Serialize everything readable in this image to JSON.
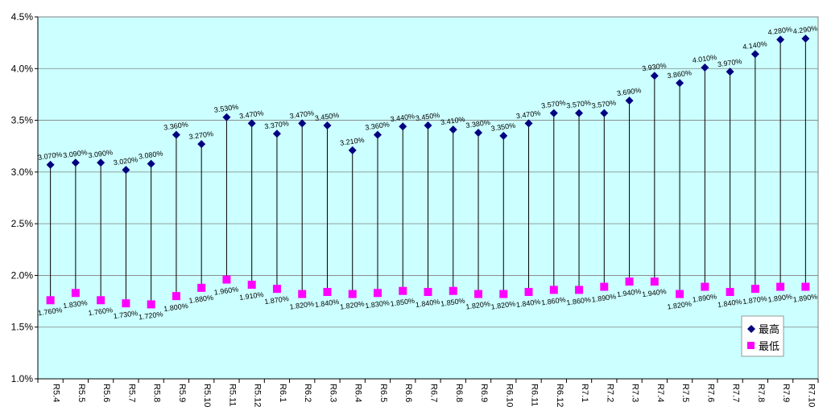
{
  "chart_data": {
    "type": "scatter",
    "categories": [
      "R5.4",
      "R5.5",
      "R5.6",
      "R5.7",
      "R5.8",
      "R5.9",
      "R5.10",
      "R5.11",
      "R5.12",
      "R6.1",
      "R6.2",
      "R6.3",
      "R6.4",
      "R6.5",
      "R6.6",
      "R6.7",
      "R6.8",
      "R6.9",
      "R6.10",
      "R6.11",
      "R6.12",
      "R7.1",
      "R7.2",
      "R7.3",
      "R7.4",
      "R7.5",
      "R7.6",
      "R7.7",
      "R7.8",
      "R7.9",
      "R7.10"
    ],
    "series": [
      {
        "name": "最高",
        "color": "#000080",
        "marker": "diamond",
        "values": [
          3.07,
          3.09,
          3.09,
          3.02,
          3.08,
          3.36,
          3.27,
          3.53,
          3.47,
          3.37,
          3.47,
          3.45,
          3.21,
          3.36,
          3.44,
          3.45,
          3.41,
          3.38,
          3.35,
          3.47,
          3.57,
          3.57,
          3.57,
          3.69,
          3.93,
          3.86,
          4.01,
          3.97,
          4.14,
          4.28,
          4.29
        ],
        "labels": [
          "3.070%",
          "3.090%",
          "3.090%",
          "3.020%",
          "3.080%",
          "3.360%",
          "3.270%",
          "3.530%",
          "3.470%",
          "3.370%",
          "3.470%",
          "3.450%",
          "3.210%",
          "3.360%",
          "3.440%",
          "3.450%",
          "3.410%",
          "3.380%",
          "3.350%",
          "3.470%",
          "3.570%",
          "3.570%",
          "3.570%",
          "3.690%",
          "3.930%",
          "3.860%",
          "4.010%",
          "3.970%",
          "4.140%",
          "4.280%",
          "4.290%"
        ]
      },
      {
        "name": "最低",
        "color": "#ff00ff",
        "marker": "square",
        "values": [
          1.76,
          1.83,
          1.76,
          1.73,
          1.72,
          1.8,
          1.88,
          1.96,
          1.91,
          1.87,
          1.82,
          1.84,
          1.82,
          1.83,
          1.85,
          1.84,
          1.85,
          1.82,
          1.82,
          1.84,
          1.86,
          1.86,
          1.89,
          1.94,
          1.94,
          1.82,
          1.89,
          1.84,
          1.87,
          1.89,
          1.89
        ],
        "labels": [
          "1.760%",
          "1.830%",
          "1.760%",
          "1.730%",
          "1.720%",
          "1.800%",
          "1.880%",
          "1.960%",
          "1.910%",
          "1.870%",
          "1.820%",
          "1.840%",
          "1.820%",
          "1.830%",
          "1.850%",
          "1.840%",
          "1.850%",
          "1.820%",
          "1.820%",
          "1.840%",
          "1.860%",
          "1.860%",
          "1.890%",
          "1.940%",
          "1.940%",
          "1.820%",
          "1.890%",
          "1.840%",
          "1.870%",
          "1.890%",
          "1.890%"
        ]
      }
    ],
    "y_ticks": [
      "1.0%",
      "1.5%",
      "2.0%",
      "2.5%",
      "3.0%",
      "3.5%",
      "4.0%",
      "4.5%"
    ],
    "ylim": [
      1.0,
      4.5
    ],
    "grid": "horizontal",
    "legend": "bottom-right",
    "plot_background": "#ccffff",
    "high_low_lines": true
  }
}
